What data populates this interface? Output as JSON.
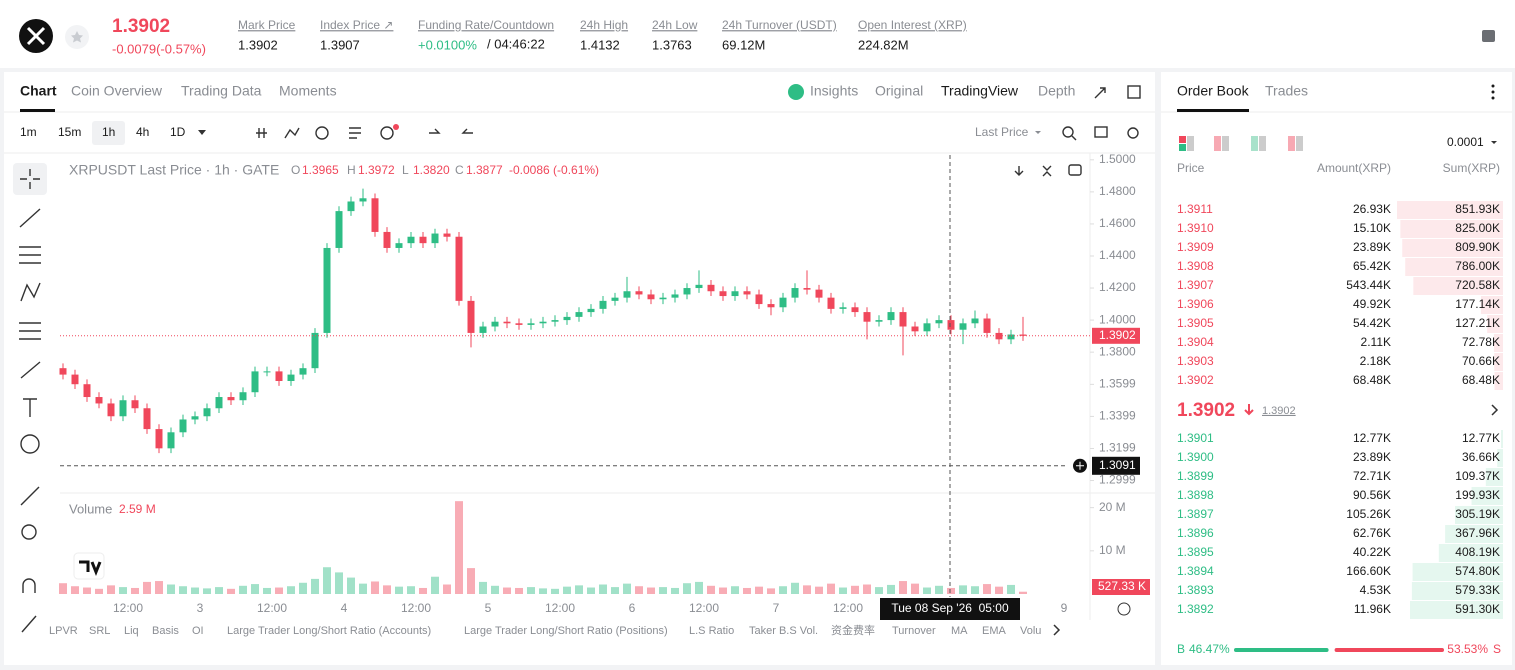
{
  "header": {
    "price": "1.3902",
    "change": "-0.0079(-0.57%)",
    "stats": [
      {
        "label": "Mark Price",
        "value": "1.3902"
      },
      {
        "label": "Index Price ↗",
        "value": "1.3907"
      },
      {
        "label": "Funding Rate/Countdown",
        "value": "+0.0100%",
        "extra": "/ 04:46:22"
      },
      {
        "label": "24h High",
        "value": "1.4132"
      },
      {
        "label": "24h Low",
        "value": "1.3763"
      },
      {
        "label": "24h Turnover (USDT)",
        "value": "69.12M"
      },
      {
        "label": "Open Interest (XRP)",
        "value": "224.82M"
      }
    ]
  },
  "tabs": [
    "Chart",
    "Coin Overview",
    "Trading Data",
    "Moments"
  ],
  "views": [
    "Insights",
    "Original",
    "TradingView",
    "Depth"
  ],
  "intervals": [
    "1m",
    "15m",
    "1h",
    "4h",
    "1D"
  ],
  "price_source": "Last Price",
  "chart": {
    "type": "candlestick",
    "title": "XRPUSDT Last Price · 1h · GATE",
    "ohlc_legend": [
      {
        "key": "O",
        "value": "1.3965"
      },
      {
        "key": "H",
        "value": "1.3972"
      },
      {
        "key": "L",
        "value": "1.3820"
      },
      {
        "key": "C",
        "value": "1.3877"
      }
    ],
    "legend_change": "-0.0086 (-0.61%)",
    "up_color": "#2ebd85",
    "down_color": "#f0475b",
    "open": [
      1.37,
      1.366,
      1.36,
      1.352,
      1.348,
      1.34,
      1.35,
      1.345,
      1.332,
      1.32,
      1.33,
      1.338,
      1.34,
      1.345,
      1.352,
      1.35,
      1.355,
      1.368,
      1.368,
      1.362,
      1.366,
      1.37,
      1.392,
      1.445,
      1.468,
      1.474,
      1.476,
      1.455,
      1.445,
      1.448,
      1.452,
      1.448,
      1.454,
      1.452,
      1.412,
      1.392,
      1.396,
      1.399,
      1.398,
      1.397,
      1.398,
      1.399,
      1.4,
      1.402,
      1.405,
      1.407,
      1.412,
      1.414,
      1.418,
      1.416,
      1.413,
      1.414,
      1.416,
      1.42,
      1.422,
      1.418,
      1.415,
      1.418,
      1.416,
      1.41,
      1.408,
      1.414,
      1.42,
      1.419,
      1.414,
      1.407,
      1.408,
      1.405,
      1.399,
      1.4,
      1.405,
      1.396,
      1.393,
      1.398,
      1.4,
      1.394,
      1.398,
      1.401,
      1.392,
      1.388,
      1.391
    ],
    "high": [
      1.373,
      1.369,
      1.363,
      1.355,
      1.351,
      1.353,
      1.353,
      1.348,
      1.335,
      1.333,
      1.341,
      1.343,
      1.348,
      1.355,
      1.355,
      1.358,
      1.371,
      1.371,
      1.371,
      1.369,
      1.373,
      1.395,
      1.448,
      1.471,
      1.477,
      1.482,
      1.479,
      1.458,
      1.451,
      1.455,
      1.455,
      1.457,
      1.457,
      1.455,
      1.415,
      1.399,
      1.402,
      1.402,
      1.401,
      1.401,
      1.402,
      1.403,
      1.405,
      1.408,
      1.41,
      1.415,
      1.417,
      1.427,
      1.421,
      1.419,
      1.417,
      1.419,
      1.423,
      1.431,
      1.425,
      1.421,
      1.421,
      1.421,
      1.419,
      1.413,
      1.417,
      1.423,
      1.431,
      1.422,
      1.417,
      1.411,
      1.411,
      1.408,
      1.403,
      1.408,
      1.408,
      1.399,
      1.401,
      1.403,
      1.403,
      1.401,
      1.406,
      1.404,
      1.395,
      1.394,
      1.402
    ],
    "low": [
      1.363,
      1.357,
      1.349,
      1.345,
      1.337,
      1.337,
      1.342,
      1.329,
      1.317,
      1.317,
      1.327,
      1.335,
      1.337,
      1.342,
      1.347,
      1.347,
      1.352,
      1.365,
      1.359,
      1.359,
      1.363,
      1.367,
      1.389,
      1.442,
      1.465,
      1.471,
      1.452,
      1.442,
      1.442,
      1.445,
      1.445,
      1.445,
      1.449,
      1.409,
      1.383,
      1.389,
      1.393,
      1.395,
      1.394,
      1.394,
      1.395,
      1.396,
      1.397,
      1.399,
      1.402,
      1.404,
      1.409,
      1.411,
      1.413,
      1.41,
      1.41,
      1.411,
      1.413,
      1.417,
      1.415,
      1.412,
      1.412,
      1.413,
      1.407,
      1.403,
      1.405,
      1.411,
      1.416,
      1.411,
      1.404,
      1.404,
      1.402,
      1.388,
      1.396,
      1.397,
      1.378,
      1.39,
      1.39,
      1.395,
      1.391,
      1.385,
      1.395,
      1.389,
      1.385,
      1.385,
      1.387
    ],
    "close": [
      1.366,
      1.36,
      1.352,
      1.348,
      1.34,
      1.35,
      1.345,
      1.332,
      1.32,
      1.33,
      1.338,
      1.34,
      1.345,
      1.352,
      1.35,
      1.355,
      1.368,
      1.368,
      1.362,
      1.366,
      1.37,
      1.392,
      1.445,
      1.468,
      1.474,
      1.476,
      1.455,
      1.445,
      1.448,
      1.452,
      1.448,
      1.454,
      1.452,
      1.412,
      1.392,
      1.396,
      1.399,
      1.398,
      1.397,
      1.398,
      1.399,
      1.4,
      1.402,
      1.405,
      1.407,
      1.412,
      1.414,
      1.418,
      1.416,
      1.413,
      1.414,
      1.416,
      1.42,
      1.422,
      1.418,
      1.415,
      1.418,
      1.416,
      1.41,
      1.408,
      1.414,
      1.42,
      1.419,
      1.414,
      1.407,
      1.408,
      1.405,
      1.399,
      1.4,
      1.405,
      1.396,
      1.393,
      1.398,
      1.4,
      1.394,
      1.398,
      1.401,
      1.392,
      1.388,
      1.391,
      1.3902
    ],
    "ylim": [
      1.294,
      1.503
    ],
    "yticks": [
      {
        "value": 1.5,
        "label": "1.5000"
      },
      {
        "value": 1.48,
        "label": "1.4800"
      },
      {
        "value": 1.46,
        "label": "1.4600"
      },
      {
        "value": 1.44,
        "label": "1.4400"
      },
      {
        "value": 1.42,
        "label": "1.4200"
      },
      {
        "value": 1.4,
        "label": "1.4000"
      },
      {
        "value": 1.38,
        "label": "1.3800"
      },
      {
        "value": 1.3599,
        "label": "1.3599"
      },
      {
        "value": 1.3399,
        "label": "1.3399"
      },
      {
        "value": 1.3199,
        "label": "1.3199"
      },
      {
        "value": 1.2999,
        "label": "1.2999"
      }
    ],
    "last_price": {
      "value": 1.3902,
      "label": "1.3902"
    },
    "crosshair": {
      "price": {
        "value": 1.3091,
        "label": "1.3091"
      },
      "time": "Tue 08 Sep '26  05:00"
    },
    "xticks": [
      "12:00",
      "3",
      "12:00",
      "4",
      "12:00",
      "5",
      "12:00",
      "6",
      "12:00",
      "7",
      "12:00",
      "9"
    ],
    "volume": {
      "title": "Volume",
      "value_label": "2.59 M",
      "ylim": [
        0,
        22
      ],
      "yticks": [
        {
          "value": 20,
          "label": "20 M"
        },
        {
          "value": 10,
          "label": "10 M"
        }
      ],
      "values": [
        2.5,
        1.8,
        1.5,
        1.2,
        2.0,
        1.6,
        1.4,
        2.8,
        3.0,
        2.2,
        1.8,
        1.5,
        1.3,
        1.6,
        1.2,
        1.9,
        2.3,
        1.4,
        1.5,
        1.8,
        2.6,
        3.5,
        6.2,
        5.0,
        3.8,
        2.4,
        2.9,
        2.0,
        1.7,
        1.8,
        1.4,
        4.0,
        2.2,
        21.5,
        6.0,
        2.8,
        1.9,
        1.5,
        1.4,
        1.6,
        1.3,
        1.2,
        1.7,
        2.0,
        1.5,
        2.2,
        1.6,
        2.4,
        1.8,
        1.5,
        1.6,
        1.4,
        2.5,
        2.8,
        1.9,
        1.5,
        1.8,
        1.4,
        1.7,
        1.3,
        1.8,
        2.6,
        2.0,
        1.7,
        2.4,
        1.5,
        1.9,
        2.2,
        1.6,
        2.1,
        3.0,
        2.4,
        1.5,
        1.9,
        1.4,
        2.0,
        1.8,
        2.3,
        1.7,
        2.1,
        0.52733
      ],
      "last_label": {
        "value": 0.52733,
        "label": "527.33 K"
      }
    }
  },
  "indicators": [
    "LPVR",
    "SRL",
    "Liq",
    "Basis",
    "OI",
    "Large Trader Long/Short Ratio (Accounts)",
    "Large Trader Long/Short Ratio (Positions)",
    "L.S Ratio",
    "Taker B.S Vol.",
    "资金费率",
    "Turnover",
    "MA",
    "EMA",
    "Volu"
  ],
  "order_book": {
    "tabs": [
      "Order Book",
      "Trades"
    ],
    "precision": "0.0001",
    "columns": [
      "Price",
      "Amount(XRP)",
      "Sum(XRP)"
    ],
    "asks": [
      {
        "price": "1.3911",
        "amount": "26.93K",
        "sum": {
          "value": 851.93,
          "label": "851.93K"
        }
      },
      {
        "price": "1.3910",
        "amount": "15.10K",
        "sum": {
          "value": 825.0,
          "label": "825.00K"
        }
      },
      {
        "price": "1.3909",
        "amount": "23.89K",
        "sum": {
          "value": 809.9,
          "label": "809.90K"
        }
      },
      {
        "price": "1.3908",
        "amount": "65.42K",
        "sum": {
          "value": 786.0,
          "label": "786.00K"
        }
      },
      {
        "price": "1.3907",
        "amount": "543.44K",
        "sum": {
          "value": 720.58,
          "label": "720.58K"
        }
      },
      {
        "price": "1.3906",
        "amount": "49.92K",
        "sum": {
          "value": 177.14,
          "label": "177.14K"
        }
      },
      {
        "price": "1.3905",
        "amount": "54.42K",
        "sum": {
          "value": 127.21,
          "label": "127.21K"
        }
      },
      {
        "price": "1.3904",
        "amount": "2.11K",
        "sum": {
          "value": 72.78,
          "label": "72.78K"
        }
      },
      {
        "price": "1.3903",
        "amount": "2.18K",
        "sum": {
          "value": 70.66,
          "label": "70.66K"
        }
      },
      {
        "price": "1.3902",
        "amount": "68.48K",
        "sum": {
          "value": 68.48,
          "label": "68.48K"
        }
      }
    ],
    "mid": {
      "price": "1.3902",
      "mark": "1.3902"
    },
    "bids": [
      {
        "price": "1.3901",
        "amount": "12.77K",
        "sum": {
          "value": 12.77,
          "label": "12.77K"
        }
      },
      {
        "price": "1.3900",
        "amount": "23.89K",
        "sum": {
          "value": 36.66,
          "label": "36.66K"
        }
      },
      {
        "price": "1.3899",
        "amount": "72.71K",
        "sum": {
          "value": 109.37,
          "label": "109.37K"
        }
      },
      {
        "price": "1.3898",
        "amount": "90.56K",
        "sum": {
          "value": 199.93,
          "label": "199.93K"
        }
      },
      {
        "price": "1.3897",
        "amount": "105.26K",
        "sum": {
          "value": 305.19,
          "label": "305.19K"
        }
      },
      {
        "price": "1.3896",
        "amount": "62.76K",
        "sum": {
          "value": 367.96,
          "label": "367.96K"
        }
      },
      {
        "price": "1.3895",
        "amount": "40.22K",
        "sum": {
          "value": 408.19,
          "label": "408.19K"
        }
      },
      {
        "price": "1.3894",
        "amount": "166.60K",
        "sum": {
          "value": 574.8,
          "label": "574.80K"
        }
      },
      {
        "price": "1.3893",
        "amount": "4.53K",
        "sum": {
          "value": 579.33,
          "label": "579.33K"
        }
      },
      {
        "price": "1.3892",
        "amount": "11.96K",
        "sum": {
          "value": 591.3,
          "label": "591.30K"
        }
      }
    ],
    "ratio": {
      "buy_key": "B",
      "buy": {
        "value": 46.47,
        "label": "46.47%"
      },
      "sell": {
        "value": 53.53,
        "label": "53.53%"
      },
      "sell_key": "S"
    }
  }
}
